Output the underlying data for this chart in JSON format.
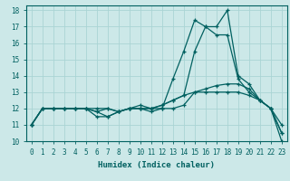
{
  "xlabel": "Humidex (Indice chaleur)",
  "background_color": "#cce8e8",
  "grid_color": "#aad4d4",
  "line_color": "#006060",
  "xlim": [
    -0.5,
    23.5
  ],
  "ylim": [
    10,
    18.3
  ],
  "xticks": [
    0,
    1,
    2,
    3,
    4,
    5,
    6,
    7,
    8,
    9,
    10,
    11,
    12,
    13,
    14,
    15,
    16,
    17,
    18,
    19,
    20,
    21,
    22,
    23
  ],
  "yticks": [
    10,
    11,
    12,
    13,
    14,
    15,
    16,
    17,
    18
  ],
  "series": [
    [
      11,
      12,
      12,
      12,
      12,
      12,
      11.5,
      11.5,
      11.8,
      12,
      12,
      12,
      12.2,
      12.5,
      12.8,
      15.5,
      17,
      17,
      18,
      14,
      13.5,
      12.5,
      12,
      10.5
    ],
    [
      11,
      12,
      12,
      12,
      12,
      12,
      12,
      12,
      11.8,
      12,
      12.2,
      12,
      12.2,
      12.5,
      12.8,
      13,
      13.2,
      13.4,
      13.5,
      13.5,
      13.2,
      12.5,
      12,
      11
    ],
    [
      11,
      12,
      12,
      12,
      12,
      12,
      11.8,
      12,
      11.8,
      12,
      12,
      12,
      12,
      12,
      12.2,
      13,
      13,
      13,
      13,
      13,
      12.8,
      12.5,
      12,
      10
    ],
    [
      11,
      12,
      12,
      12,
      12,
      12,
      11.8,
      11.5,
      11.8,
      12,
      12,
      11.8,
      12,
      13.8,
      15.5,
      17.4,
      17,
      16.5,
      16.5,
      13.8,
      13,
      12.5,
      12,
      10.5
    ]
  ]
}
